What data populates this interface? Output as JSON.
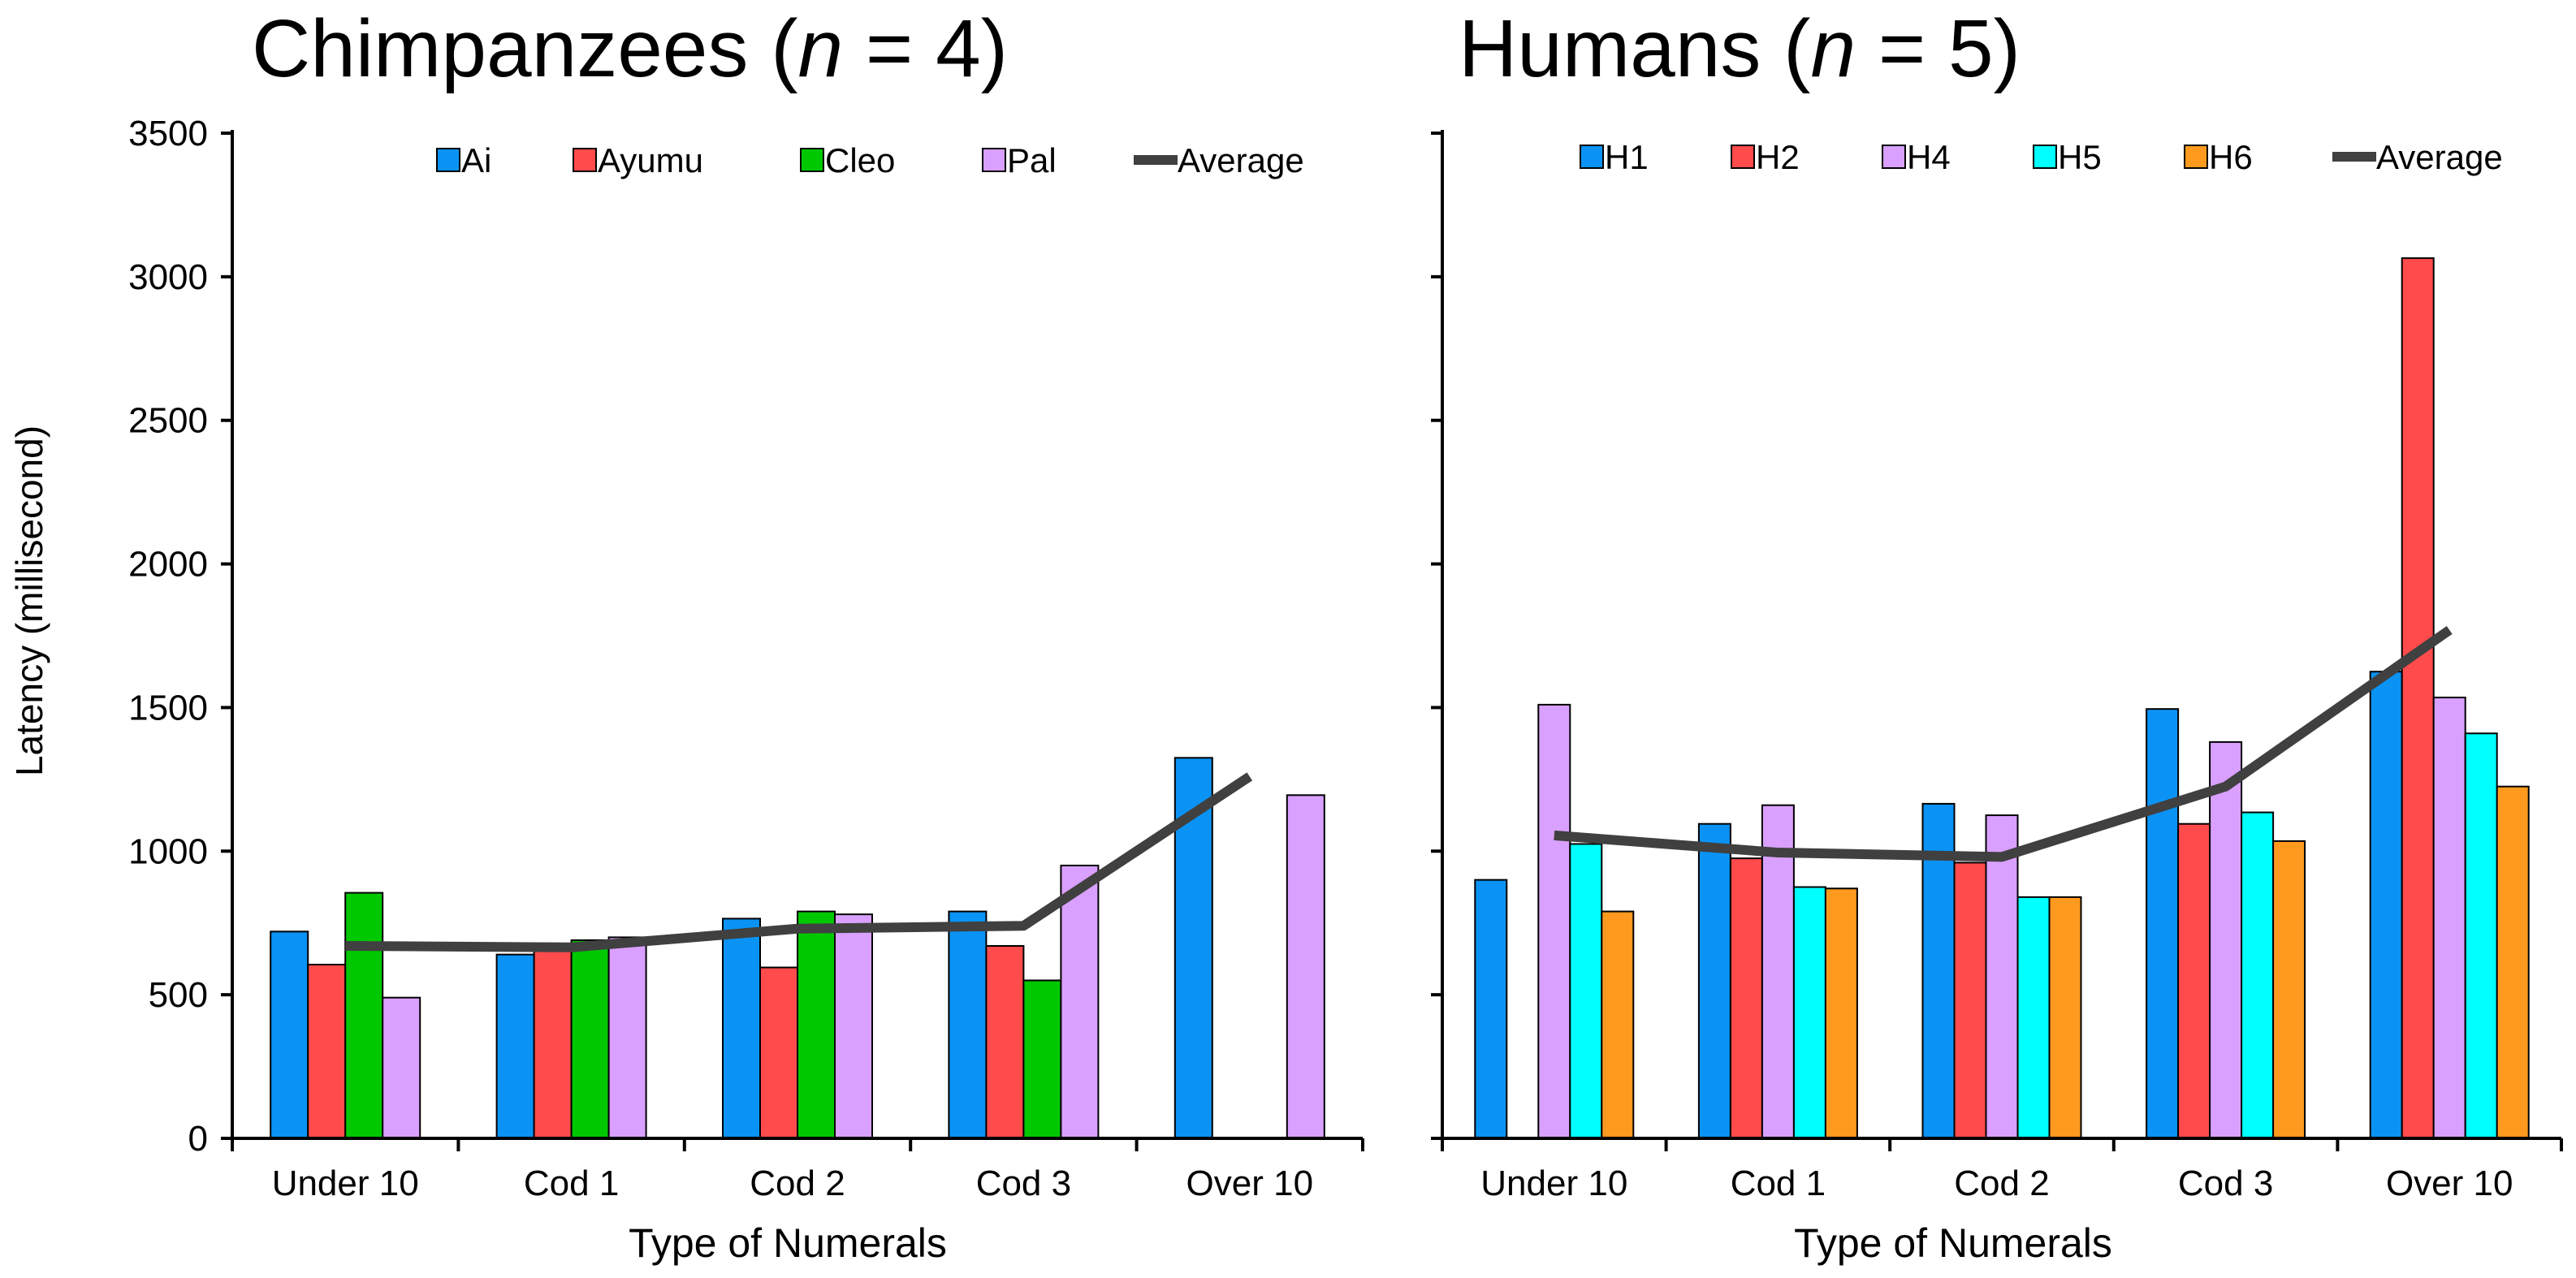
{
  "figure": {
    "ylabel": "Latency (millisecond)"
  },
  "chart_data": [
    {
      "type": "bar",
      "title_main": "Chimpanzees (",
      "title_italic": "n",
      "title_end": " = 4)",
      "xlabel": "Type of Numerals",
      "ylabel": "Latency (millisecond)",
      "ylim": [
        0,
        3500
      ],
      "yticks": [
        "0",
        "500",
        "1000",
        "1500",
        "2000",
        "2500",
        "3000",
        "3500"
      ],
      "categories": [
        "Under 10",
        "Cod 1",
        "Cod 2",
        "Cod 3",
        "Over 10"
      ],
      "series": [
        {
          "name": "Ai",
          "color": "#0a93f5",
          "values": [
            720,
            640,
            765,
            790,
            1325
          ]
        },
        {
          "name": "Ayumu",
          "color": "#ff4b4b",
          "values": [
            605,
            665,
            595,
            670,
            null
          ]
        },
        {
          "name": "Cleo",
          "color": "#00c800",
          "values": [
            855,
            690,
            790,
            550,
            null
          ]
        },
        {
          "name": "Pal",
          "color": "#d9a0ff",
          "values": [
            490,
            700,
            780,
            950,
            1195
          ]
        }
      ],
      "average": {
        "name": "Average",
        "color": "#404040",
        "values": [
          670,
          665,
          730,
          740,
          1260
        ]
      },
      "legend_position": "top-right"
    },
    {
      "type": "bar",
      "title_main": "Humans (",
      "title_italic": "n",
      "title_end": " = 5)",
      "xlabel": "Type of Numerals",
      "ylabel": "Latency (millisecond)",
      "ylim": [
        0,
        3500
      ],
      "categories": [
        "Under 10",
        "Cod 1",
        "Cod 2",
        "Cod 3",
        "Over 10"
      ],
      "series": [
        {
          "name": "H1",
          "color": "#0a93f5",
          "values": [
            900,
            1095,
            1165,
            1495,
            1625
          ]
        },
        {
          "name": "H2",
          "color": "#ff4b4b",
          "values": [
            null,
            975,
            960,
            1095,
            3065
          ]
        },
        {
          "name": "H4",
          "color": "#d9a0ff",
          "values": [
            1510,
            1160,
            1125,
            1380,
            1535
          ]
        },
        {
          "name": "H5",
          "color": "#00ffff",
          "values": [
            1025,
            875,
            840,
            1135,
            1410
          ]
        },
        {
          "name": "H6",
          "color": "#ff9a1f",
          "values": [
            790,
            870,
            840,
            1035,
            1225
          ]
        }
      ],
      "average": {
        "name": "Average",
        "color": "#404040",
        "values": [
          1055,
          995,
          980,
          1225,
          1770
        ]
      },
      "legend_position": "top-right"
    }
  ]
}
